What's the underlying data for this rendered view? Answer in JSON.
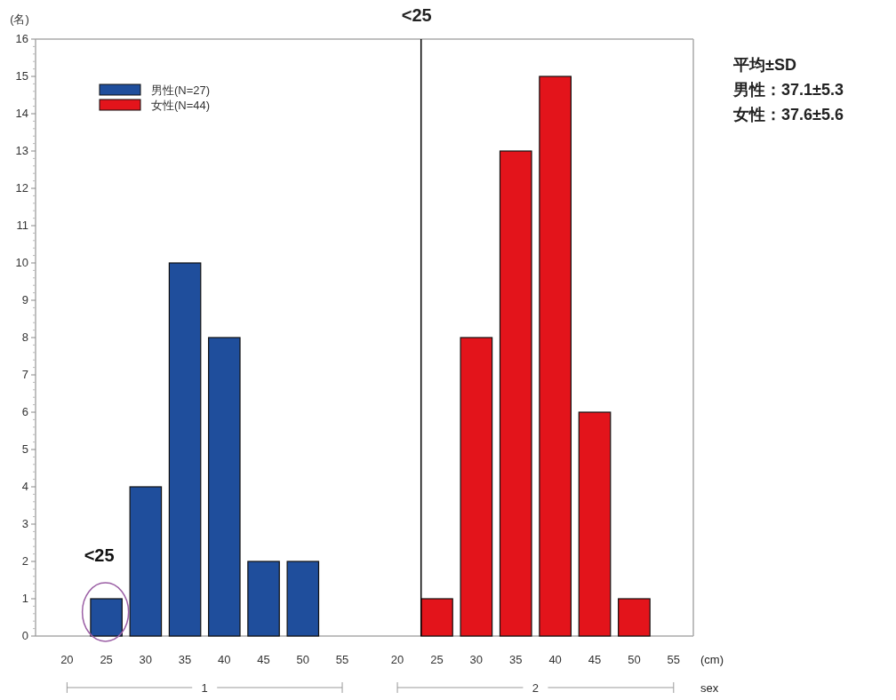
{
  "chart_data": [
    {
      "type": "bar",
      "ylabel": "(名)",
      "xlabel": "1",
      "x": [
        25,
        30,
        35,
        40,
        45,
        50
      ],
      "xlim": [
        16,
        58.5
      ],
      "xticks": [
        20,
        25,
        30,
        35,
        40,
        45,
        50,
        55
      ],
      "ylim": [
        0,
        16
      ],
      "yticks": [
        0,
        1,
        2,
        3,
        4,
        5,
        6,
        7,
        8,
        9,
        10,
        11,
        12,
        13,
        14,
        15,
        16
      ],
      "legend": "top left",
      "series": [
        {
          "name": "男性(N=27)",
          "color": "#1f4e9c",
          "values": [
            1,
            4,
            10,
            8,
            2,
            2
          ]
        }
      ],
      "annotations": [
        {
          "text": "<25",
          "x": 25,
          "y": 1
        }
      ]
    },
    {
      "type": "bar",
      "xlabel": "2",
      "x": [
        25,
        30,
        35,
        40,
        45,
        50
      ],
      "xlim": [
        16.5,
        57.5
      ],
      "xticks": [
        20,
        25,
        30,
        35,
        40,
        45,
        50,
        55
      ],
      "ylim": [
        0,
        16
      ],
      "tick_labels": "x",
      "legend": "top left",
      "series": [
        {
          "name": "女性(N=44)",
          "color": "#e3141b",
          "values": [
            1,
            8,
            13,
            15,
            6,
            1
          ]
        }
      ],
      "ref_lines": [
        {
          "axis": "x",
          "value": 23,
          "color": "#000000"
        }
      ],
      "annotations": [
        "<25",
        "(cm)",
        "sex",
        "平均±SD",
        "男性：37.1±5.3",
        "女性：37.6±5.6"
      ]
    }
  ]
}
